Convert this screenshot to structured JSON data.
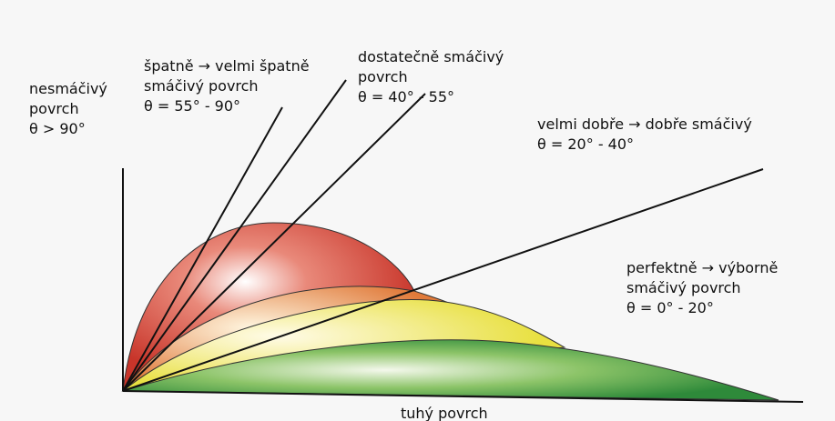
{
  "labels": [
    {
      "lines": [
        "nesmáčivý",
        "povrch",
        "θ > 90°"
      ]
    },
    {
      "lines": [
        "špatně → velmi špatně",
        "smáčivý povrch",
        "θ = 55° - 90°"
      ]
    },
    {
      "lines": [
        "dostatečně smáčivý",
        "povrch",
        "θ = 40° - 55°"
      ]
    },
    {
      "lines": [
        "velmi dobře → dobře smáčivý",
        "θ = 20° - 40°"
      ]
    },
    {
      "lines": [
        "perfektně → výborně",
        "smáčivý povrch",
        "θ = 0° - 20°"
      ]
    }
  ],
  "surface": "tuhý povrch"
}
